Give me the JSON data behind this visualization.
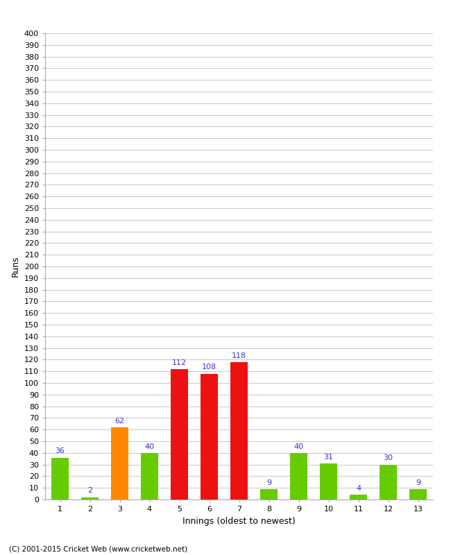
{
  "xlabel": "Innings (oldest to newest)",
  "ylabel": "Runs",
  "categories": [
    1,
    2,
    3,
    4,
    5,
    6,
    7,
    8,
    9,
    10,
    11,
    12,
    13
  ],
  "values": [
    36,
    2,
    62,
    40,
    112,
    108,
    118,
    9,
    40,
    31,
    4,
    30,
    9
  ],
  "bar_colors": [
    "#66cc00",
    "#66cc00",
    "#ff8800",
    "#66cc00",
    "#ee1111",
    "#ee1111",
    "#ee1111",
    "#66cc00",
    "#66cc00",
    "#66cc00",
    "#66cc00",
    "#66cc00",
    "#66cc00"
  ],
  "ylim": [
    0,
    400
  ],
  "label_color": "#3333cc",
  "background_color": "#ffffff",
  "grid_color": "#cccccc",
  "footer": "(C) 2001-2015 Cricket Web (www.cricketweb.net)"
}
